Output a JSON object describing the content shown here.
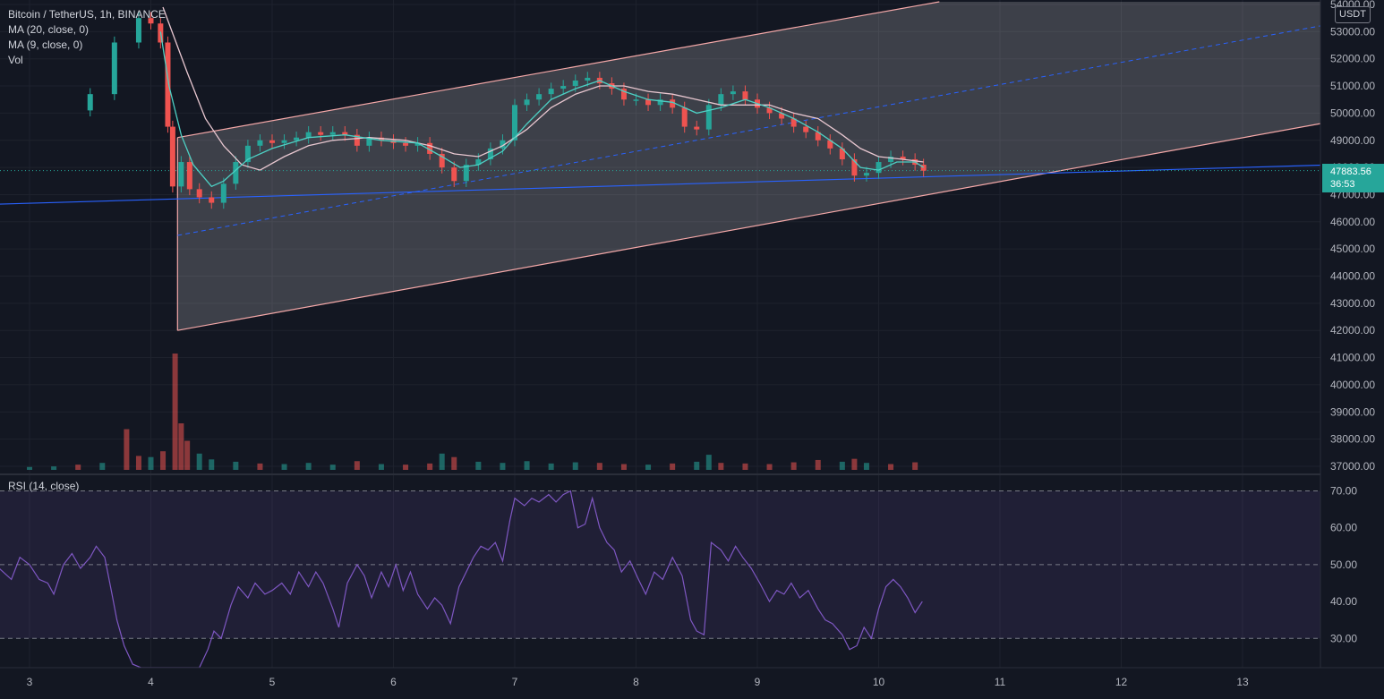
{
  "legend": {
    "symbol": "Bitcoin / TetherUS, 1h, BINANCE",
    "ma20": "MA (20, close, 0)",
    "ma9": "MA (9, close, 0)",
    "vol": "Vol"
  },
  "rsi_label": "RSI (14, close)",
  "currency_badge": "USDT",
  "last_price": "47883.56",
  "countdown": "36:53",
  "colors": {
    "background": "#131722",
    "bull": "#26a69a",
    "bear": "#ef5350",
    "ma9": "#4dd0c4",
    "ma20": "#e8c7d0",
    "channel": "#f4a8a8",
    "support": "#2962ff",
    "rsi": "#7e57c2"
  },
  "chart_data": [
    {
      "type": "line",
      "title": "Bitcoin / TetherUS, 1h, BINANCE",
      "x_ticks": [
        "3",
        "4",
        "5",
        "6",
        "7",
        "8",
        "9",
        "10",
        "11",
        "12",
        "13"
      ],
      "y_ticks": [
        "54000.00",
        "53000.00",
        "52000.00",
        "51000.00",
        "50000.00",
        "49000.00",
        "48000.00",
        "47000.00",
        "46000.00",
        "45000.00",
        "44000.00",
        "43000.00",
        "42000.00",
        "41000.00",
        "40000.00",
        "39000.00",
        "38000.00",
        "37000.00"
      ],
      "ylim": [
        36950,
        54100
      ],
      "xlim": [
        2.75,
        13.75
      ],
      "price_close": [
        [
          3.0,
          50100
        ],
        [
          3.5,
          50700
        ],
        [
          3.7,
          52600
        ],
        [
          3.9,
          53500
        ],
        [
          4.0,
          53300
        ],
        [
          4.08,
          52600
        ],
        [
          4.14,
          49500
        ],
        [
          4.18,
          47300
        ],
        [
          4.25,
          48200
        ],
        [
          4.32,
          47200
        ],
        [
          4.4,
          46900
        ],
        [
          4.5,
          46700
        ],
        [
          4.6,
          47400
        ],
        [
          4.7,
          48200
        ],
        [
          4.8,
          48800
        ],
        [
          4.9,
          49000
        ],
        [
          5.0,
          48900
        ],
        [
          5.1,
          49000
        ],
        [
          5.2,
          49100
        ],
        [
          5.3,
          49300
        ],
        [
          5.4,
          49200
        ],
        [
          5.5,
          49300
        ],
        [
          5.6,
          49200
        ],
        [
          5.7,
          48800
        ],
        [
          5.8,
          49100
        ],
        [
          5.9,
          49000
        ],
        [
          6.0,
          48900
        ],
        [
          6.1,
          48800
        ],
        [
          6.2,
          48900
        ],
        [
          6.3,
          48500
        ],
        [
          6.4,
          48000
        ],
        [
          6.5,
          47500
        ],
        [
          6.6,
          48100
        ],
        [
          6.7,
          48300
        ],
        [
          6.8,
          48700
        ],
        [
          6.9,
          49000
        ],
        [
          7.0,
          50300
        ],
        [
          7.1,
          50500
        ],
        [
          7.2,
          50700
        ],
        [
          7.3,
          50900
        ],
        [
          7.4,
          51000
        ],
        [
          7.5,
          51200
        ],
        [
          7.6,
          51300
        ],
        [
          7.7,
          51100
        ],
        [
          7.8,
          50900
        ],
        [
          7.9,
          50500
        ],
        [
          8.0,
          50500
        ],
        [
          8.1,
          50300
        ],
        [
          8.2,
          50500
        ],
        [
          8.3,
          50200
        ],
        [
          8.4,
          49500
        ],
        [
          8.5,
          49400
        ],
        [
          8.6,
          50300
        ],
        [
          8.7,
          50700
        ],
        [
          8.8,
          50800
        ],
        [
          8.9,
          50500
        ],
        [
          9.0,
          50200
        ],
        [
          9.1,
          50000
        ],
        [
          9.2,
          49800
        ],
        [
          9.3,
          49500
        ],
        [
          9.4,
          49300
        ],
        [
          9.5,
          49000
        ],
        [
          9.6,
          48700
        ],
        [
          9.7,
          48300
        ],
        [
          9.8,
          47700
        ],
        [
          9.9,
          47800
        ],
        [
          10.0,
          48200
        ],
        [
          10.1,
          48400
        ],
        [
          10.2,
          48300
        ],
        [
          10.3,
          48100
        ],
        [
          10.37,
          47880
        ]
      ],
      "ma9": [
        [
          4.08,
          53000
        ],
        [
          4.15,
          51000
        ],
        [
          4.25,
          49200
        ],
        [
          4.35,
          48100
        ],
        [
          4.5,
          47300
        ],
        [
          4.6,
          47500
        ],
        [
          4.8,
          48300
        ],
        [
          5.0,
          48700
        ],
        [
          5.3,
          49100
        ],
        [
          5.6,
          49200
        ],
        [
          5.9,
          49000
        ],
        [
          6.2,
          48900
        ],
        [
          6.4,
          48400
        ],
        [
          6.55,
          48000
        ],
        [
          6.7,
          48100
        ],
        [
          6.9,
          48600
        ],
        [
          7.1,
          49600
        ],
        [
          7.3,
          50500
        ],
        [
          7.5,
          50900
        ],
        [
          7.7,
          51200
        ],
        [
          7.9,
          50800
        ],
        [
          8.1,
          50500
        ],
        [
          8.3,
          50400
        ],
        [
          8.5,
          50000
        ],
        [
          8.7,
          50200
        ],
        [
          8.9,
          50500
        ],
        [
          9.1,
          50200
        ],
        [
          9.3,
          49800
        ],
        [
          9.5,
          49300
        ],
        [
          9.7,
          48700
        ],
        [
          9.85,
          48000
        ],
        [
          10.0,
          47900
        ],
        [
          10.15,
          48200
        ],
        [
          10.3,
          48200
        ],
        [
          10.37,
          48000
        ]
      ],
      "ma20": [
        [
          4.1,
          53900
        ],
        [
          4.3,
          51500
        ],
        [
          4.45,
          49800
        ],
        [
          4.6,
          48800
        ],
        [
          4.75,
          48100
        ],
        [
          4.9,
          47900
        ],
        [
          5.1,
          48400
        ],
        [
          5.3,
          48800
        ],
        [
          5.5,
          49000
        ],
        [
          5.8,
          49100
        ],
        [
          6.1,
          49000
        ],
        [
          6.3,
          48800
        ],
        [
          6.5,
          48500
        ],
        [
          6.7,
          48400
        ],
        [
          6.9,
          48800
        ],
        [
          7.1,
          49400
        ],
        [
          7.3,
          50200
        ],
        [
          7.5,
          50700
        ],
        [
          7.7,
          51000
        ],
        [
          7.9,
          51000
        ],
        [
          8.1,
          50800
        ],
        [
          8.3,
          50700
        ],
        [
          8.5,
          50500
        ],
        [
          8.7,
          50300
        ],
        [
          8.9,
          50300
        ],
        [
          9.1,
          50300
        ],
        [
          9.3,
          50000
        ],
        [
          9.5,
          49800
        ],
        [
          9.7,
          49200
        ],
        [
          9.85,
          48700
        ],
        [
          10.0,
          48400
        ],
        [
          10.2,
          48300
        ],
        [
          10.37,
          48200
        ]
      ],
      "channel": {
        "upper": [
          [
            4.22,
            49100
          ],
          [
            7.0,
            51300
          ],
          [
            10.5,
            54100
          ]
        ],
        "lower": [
          [
            4.22,
            42000
          ],
          [
            13.75,
            49700
          ]
        ],
        "mid": [
          [
            4.22,
            45500
          ],
          [
            13.75,
            53300
          ]
        ]
      },
      "support_line": [
        [
          2.75,
          46650
        ],
        [
          13.75,
          48100
        ]
      ],
      "last_price": 47883.56
    },
    {
      "type": "bar",
      "title": "Vol",
      "x": [
        3.0,
        3.2,
        3.4,
        3.6,
        3.8,
        3.9,
        4.0,
        4.1,
        4.2,
        4.25,
        4.3,
        4.4,
        4.5,
        4.7,
        4.9,
        5.1,
        5.3,
        5.5,
        5.7,
        5.9,
        6.1,
        6.3,
        6.4,
        6.5,
        6.7,
        6.9,
        7.1,
        7.3,
        7.5,
        7.7,
        7.9,
        8.1,
        8.3,
        8.5,
        8.6,
        8.7,
        8.9,
        9.1,
        9.3,
        9.5,
        9.7,
        9.8,
        9.9,
        10.1,
        10.3
      ],
      "values": [
        25,
        30,
        45,
        60,
        350,
        120,
        110,
        160,
        1000,
        400,
        250,
        140,
        90,
        70,
        55,
        50,
        60,
        45,
        75,
        50,
        45,
        55,
        140,
        110,
        70,
        60,
        75,
        55,
        65,
        60,
        50,
        45,
        55,
        70,
        130,
        60,
        55,
        50,
        65,
        85,
        70,
        95,
        60,
        50,
        65
      ],
      "up": [
        true,
        true,
        false,
        true,
        false,
        false,
        true,
        false,
        false,
        false,
        false,
        true,
        true,
        true,
        false,
        true,
        true,
        true,
        false,
        true,
        false,
        false,
        true,
        false,
        true,
        true,
        true,
        true,
        true,
        false,
        false,
        true,
        false,
        true,
        true,
        false,
        false,
        false,
        false,
        false,
        true,
        false,
        true,
        false,
        false
      ]
    },
    {
      "type": "line",
      "title": "RSI (14, close)",
      "y_ticks": [
        "70.00",
        "60.00",
        "50.00",
        "40.00",
        "30.00"
      ],
      "ylim": [
        20,
        72
      ],
      "bands": [
        30,
        50,
        70
      ],
      "values": [
        [
          2.75,
          49
        ],
        [
          2.85,
          46
        ],
        [
          2.92,
          52
        ],
        [
          3.0,
          50
        ],
        [
          3.08,
          46
        ],
        [
          3.15,
          45
        ],
        [
          3.2,
          42
        ],
        [
          3.28,
          50
        ],
        [
          3.35,
          53
        ],
        [
          3.42,
          49
        ],
        [
          3.5,
          52
        ],
        [
          3.55,
          55
        ],
        [
          3.62,
          52
        ],
        [
          3.68,
          42
        ],
        [
          3.72,
          35
        ],
        [
          3.78,
          28
        ],
        [
          3.85,
          23
        ],
        [
          3.92,
          19
        ],
        [
          3.98,
          22
        ],
        [
          4.05,
          19
        ],
        [
          4.12,
          15
        ],
        [
          4.18,
          14
        ],
        [
          4.25,
          12
        ],
        [
          4.32,
          16
        ],
        [
          4.4,
          20
        ],
        [
          4.47,
          27
        ],
        [
          4.52,
          32
        ],
        [
          4.58,
          30
        ],
        [
          4.66,
          39
        ],
        [
          4.72,
          44
        ],
        [
          4.8,
          41
        ],
        [
          4.86,
          45
        ],
        [
          4.94,
          42
        ],
        [
          5.0,
          43
        ],
        [
          5.08,
          45
        ],
        [
          5.15,
          42
        ],
        [
          5.22,
          48
        ],
        [
          5.3,
          44
        ],
        [
          5.36,
          48
        ],
        [
          5.42,
          45
        ],
        [
          5.5,
          38
        ],
        [
          5.55,
          33
        ],
        [
          5.62,
          45
        ],
        [
          5.7,
          50
        ],
        [
          5.76,
          47
        ],
        [
          5.82,
          41
        ],
        [
          5.9,
          48
        ],
        [
          5.96,
          44
        ],
        [
          6.02,
          50
        ],
        [
          6.08,
          43
        ],
        [
          6.14,
          48
        ],
        [
          6.2,
          42
        ],
        [
          6.28,
          38
        ],
        [
          6.34,
          41
        ],
        [
          6.4,
          39
        ],
        [
          6.47,
          34
        ],
        [
          6.54,
          44
        ],
        [
          6.6,
          48
        ],
        [
          6.66,
          52
        ],
        [
          6.72,
          55
        ],
        [
          6.78,
          54
        ],
        [
          6.84,
          56
        ],
        [
          6.9,
          51
        ],
        [
          6.96,
          62
        ],
        [
          7.0,
          68
        ],
        [
          7.08,
          66
        ],
        [
          7.14,
          68
        ],
        [
          7.2,
          67
        ],
        [
          7.28,
          69
        ],
        [
          7.34,
          67
        ],
        [
          7.4,
          69
        ],
        [
          7.46,
          70
        ],
        [
          7.52,
          60
        ],
        [
          7.58,
          61
        ],
        [
          7.64,
          68
        ],
        [
          7.7,
          60
        ],
        [
          7.76,
          56
        ],
        [
          7.82,
          54
        ],
        [
          7.88,
          48
        ],
        [
          7.95,
          51
        ],
        [
          8.02,
          46
        ],
        [
          8.08,
          42
        ],
        [
          8.15,
          48
        ],
        [
          8.22,
          46
        ],
        [
          8.3,
          52
        ],
        [
          8.38,
          47
        ],
        [
          8.45,
          35
        ],
        [
          8.5,
          32
        ],
        [
          8.56,
          31
        ],
        [
          8.62,
          56
        ],
        [
          8.7,
          54
        ],
        [
          8.76,
          51
        ],
        [
          8.82,
          55
        ],
        [
          8.88,
          52
        ],
        [
          8.95,
          49
        ],
        [
          9.02,
          45
        ],
        [
          9.1,
          40
        ],
        [
          9.16,
          43
        ],
        [
          9.22,
          42
        ],
        [
          9.28,
          45
        ],
        [
          9.35,
          41
        ],
        [
          9.42,
          43
        ],
        [
          9.5,
          38
        ],
        [
          9.56,
          35
        ],
        [
          9.62,
          34
        ],
        [
          9.7,
          31
        ],
        [
          9.76,
          27
        ],
        [
          9.82,
          28
        ],
        [
          9.88,
          33
        ],
        [
          9.94,
          30
        ],
        [
          10.0,
          38
        ],
        [
          10.06,
          44
        ],
        [
          10.12,
          46
        ],
        [
          10.18,
          44
        ],
        [
          10.24,
          41
        ],
        [
          10.3,
          37
        ],
        [
          10.36,
          40
        ]
      ]
    }
  ]
}
